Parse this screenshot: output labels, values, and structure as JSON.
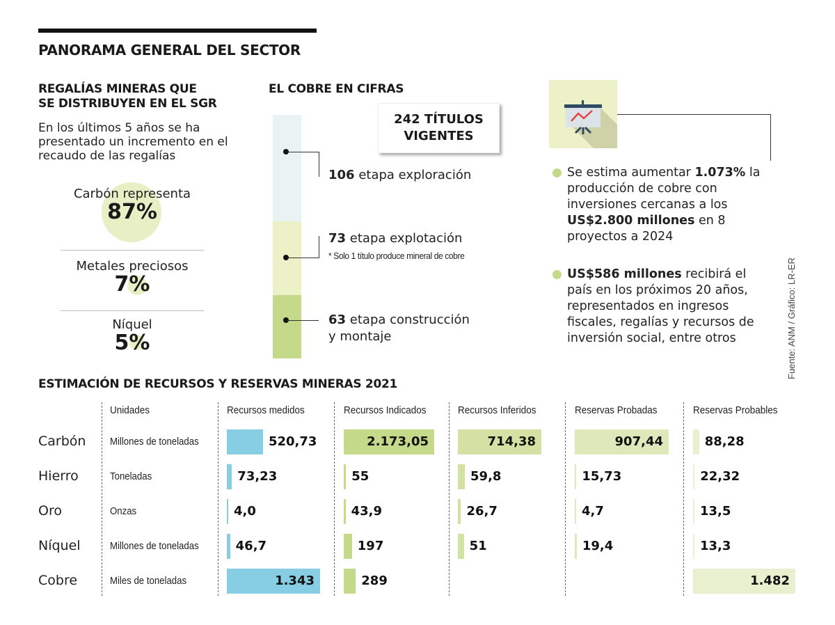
{
  "header": {
    "title": "PANORAMA GENERAL DEL SECTOR"
  },
  "regalias": {
    "title_line1": "REGALÍAS MINERAS QUE",
    "title_line2": "SE DISTRIBUYEN EN EL SGR",
    "intro": "En los últimos 5 años se ha presentado un incremento en el recaudo de las regalías",
    "stats": [
      {
        "label": "Carbón representa",
        "value": "87%",
        "percent": 87
      },
      {
        "label": "Metales preciosos",
        "value": "7%",
        "percent": 7
      },
      {
        "label": "Níquel",
        "value": "5%",
        "percent": 5
      }
    ],
    "circle_color": "#e8efc4"
  },
  "cobre": {
    "title": "EL COBRE EN CIFRAS",
    "total_line1": "242 TÍTULOS",
    "total_line2": "VIGENTES",
    "total": 242,
    "stages": [
      {
        "count": "106",
        "count_value": 106,
        "label": "etapa exploración",
        "label2": "",
        "note": "",
        "color": "#e8f3f2"
      },
      {
        "count": "73",
        "count_value": 73,
        "label": "etapa explotación",
        "label2": "",
        "note": "* Solo 1 título produce mineral de cobre",
        "color": "#edf1c8"
      },
      {
        "count": "63",
        "count_value": 63,
        "label": "etapa construcción",
        "label2": "y montaje",
        "note": "",
        "color": "#c5d98a"
      }
    ]
  },
  "highlights": {
    "icon": "presentation-chart-icon",
    "bullets": [
      {
        "parts": [
          {
            "t": "Se estima aumentar ",
            "b": false
          },
          {
            "t": "1.073%",
            "b": true
          },
          {
            "t": " la producción de cobre con inversiones cercanas a los ",
            "b": false
          },
          {
            "t": "US$2.800 millones",
            "b": true
          },
          {
            "t": " en 8 proyectos a 2024",
            "b": false
          }
        ]
      },
      {
        "parts": [
          {
            "t": "US$586 millones",
            "b": true
          },
          {
            "t": " recibirá el país en los próximos 20 años, representados en ingresos fiscales, regalías y recursos de inversión social, entre otros",
            "b": false
          }
        ]
      }
    ],
    "bullet_color": "#c5d98a"
  },
  "source": "Fuente: ANM / Gráfico: LR-ER",
  "chart_data": {
    "type": "table",
    "title": "ESTIMACIÓN DE RECURSOS Y RESERVAS MINERAS 2021",
    "unit_header": "Unidades",
    "columns": [
      {
        "name": "Recursos medidos",
        "color": "#87cde3"
      },
      {
        "name": "Recursos Indicados",
        "color": "#c5d98a"
      },
      {
        "name": "Recursos Inferidos",
        "color": "#d3e2a4"
      },
      {
        "name": "Reservas Probadas",
        "color": "#dee9bb"
      },
      {
        "name": "Reservas Probables",
        "color": "#e8f0cf"
      }
    ],
    "rows": [
      {
        "mineral": "Carbón",
        "unit": "Millones de toneladas",
        "labels": [
          "520,73",
          "2.173,05",
          "714,38",
          "907,44",
          "88,28"
        ],
        "values": [
          520.73,
          2173.05,
          714.38,
          907.44,
          88.28
        ]
      },
      {
        "mineral": "Hierro",
        "unit": "Toneladas",
        "labels": [
          "73,23",
          "55",
          "59,8",
          "15,73",
          "22,32"
        ],
        "values": [
          73.23,
          55,
          59.8,
          15.73,
          22.32
        ]
      },
      {
        "mineral": "Oro",
        "unit": "Onzas",
        "labels": [
          "4,0",
          "43,9",
          "26,7",
          "4,7",
          "13,5"
        ],
        "values": [
          4.0,
          43.9,
          26.7,
          4.7,
          13.5
        ]
      },
      {
        "mineral": "Níquel",
        "unit": "Millones de toneladas",
        "labels": [
          "46,7",
          "197",
          "51",
          "19,4",
          "13,3"
        ],
        "values": [
          46.7,
          197,
          51,
          19.4,
          13.3
        ]
      },
      {
        "mineral": "Cobre",
        "unit": "Miles de toneladas",
        "labels": [
          "1.343",
          "289",
          "",
          "",
          "1.482"
        ],
        "values": [
          1343,
          289,
          null,
          null,
          1482
        ]
      }
    ]
  }
}
